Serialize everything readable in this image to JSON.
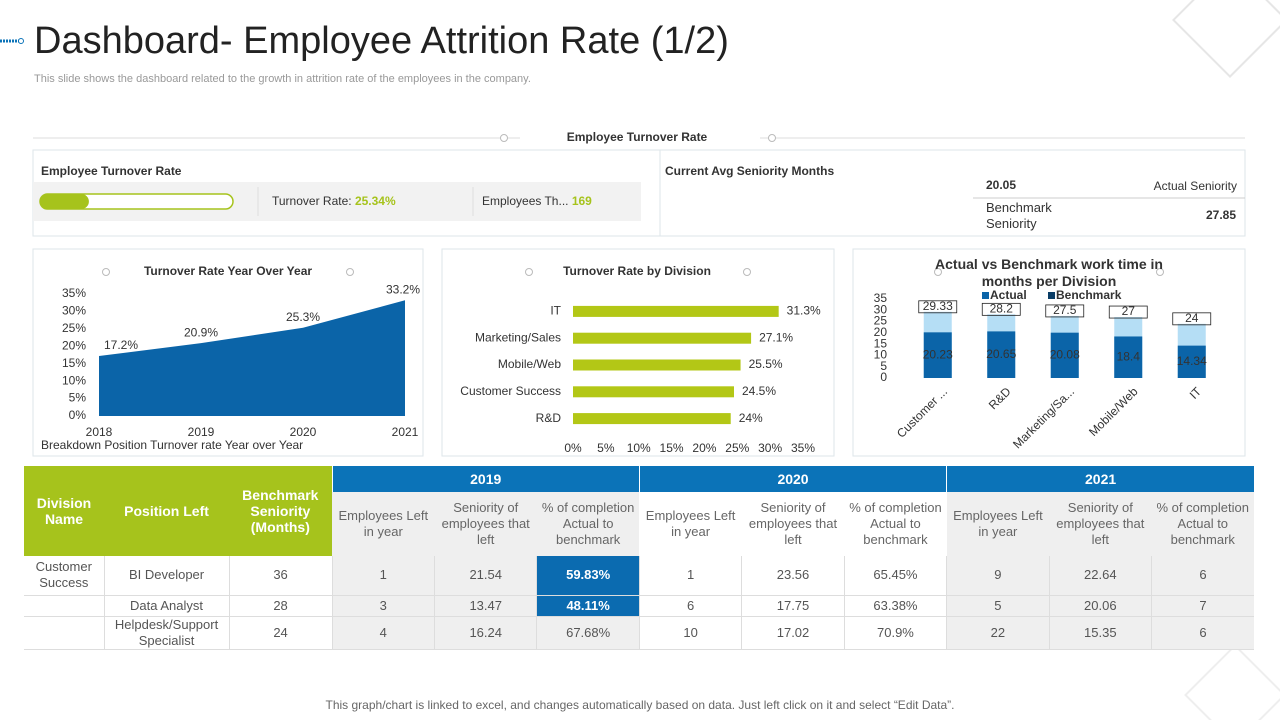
{
  "header": {
    "title": "Dashboard- Employee Attrition Rate (1/2)",
    "subtitle": "This slide shows the dashboard related to the growth in attrition rate of the employees in the company."
  },
  "section_title": "Employee Turnover Rate",
  "kpi": {
    "title": "Employee Turnover Rate",
    "turnover_label": "Turnover Rate:",
    "turnover_value": 25.34,
    "turnover_value_label": "25.34%",
    "employees_label": "Employees Th...",
    "employees_value": 169
  },
  "seniority": {
    "title": "Current Avg Seniority Months",
    "actual_value": 20.05,
    "actual_label": "Actual Seniority",
    "benchmark_label": "Benchmark Seniority",
    "benchmark_value": 27.85
  },
  "chart_data": [
    {
      "type": "area",
      "title": "Turnover Rate Year Over Year",
      "categories": [
        "2018",
        "2019",
        "2020",
        "2021"
      ],
      "values": [
        17.2,
        20.9,
        25.3,
        33.2
      ],
      "value_labels": [
        "17.2%",
        "20.9%",
        "25.3%",
        "33.2%"
      ],
      "color": "#0b64a8",
      "ylim": [
        0,
        35
      ],
      "yticks": [
        {
          "value": 0,
          "label": "0%"
        },
        {
          "value": 5,
          "label": "5%"
        },
        {
          "value": 10,
          "label": "10%"
        },
        {
          "value": 15,
          "label": "15%"
        },
        {
          "value": 20,
          "label": "20%"
        },
        {
          "value": 25,
          "label": "25%"
        },
        {
          "value": 30,
          "label": "30%"
        },
        {
          "value": 35,
          "label": "35%"
        }
      ],
      "note": "Breakdown Position Turnover rate Year over Year"
    },
    {
      "type": "hbar",
      "title": "Turnover Rate by Division",
      "categories": [
        "IT",
        "Marketing/Sales",
        "Mobile/Web",
        "Customer Success",
        "R&D"
      ],
      "values": [
        31.3,
        27.1,
        25.5,
        24.5,
        24
      ],
      "value_labels": [
        "31.3%",
        "27.1%",
        "25.5%",
        "24.5%",
        "24%"
      ],
      "color": "#b3c716",
      "xlim": [
        0,
        35
      ],
      "xticks": [
        {
          "value": 0,
          "label": "0%"
        },
        {
          "value": 5,
          "label": "5%"
        },
        {
          "value": 10,
          "label": "10%"
        },
        {
          "value": 15,
          "label": "15%"
        },
        {
          "value": 20,
          "label": "20%"
        },
        {
          "value": 25,
          "label": "25%"
        },
        {
          "value": 30,
          "label": "30%"
        },
        {
          "value": 35,
          "label": "35%"
        }
      ]
    },
    {
      "type": "overlap_bar",
      "title": "Actual vs Benchmark work time in months per Division",
      "categories": [
        "Customer ...",
        "R&D",
        "Marketing/Sa...",
        "Mobile/Web",
        "IT"
      ],
      "series": [
        {
          "name": "Benchmark",
          "color": "#b5def5",
          "values": [
            29.33,
            28.2,
            27.5,
            27,
            24
          ]
        },
        {
          "name": "Actual",
          "color": "#0b64a8",
          "values": [
            20.23,
            20.65,
            20.08,
            18.4,
            14.34
          ]
        }
      ],
      "ylim": [
        0,
        35
      ],
      "yticks": [
        0,
        5,
        10,
        15,
        20,
        25,
        30,
        35
      ]
    }
  ],
  "table": {
    "columns": [
      "Division Name",
      "Position Left",
      "Benchmark Seniority (Months)"
    ],
    "years": [
      "2019",
      "2020",
      "2021"
    ],
    "subcolumns": [
      "Employees Left in year",
      "Seniority of employees that left",
      "% of completion Actual to benchmark"
    ],
    "rows": [
      [
        "Customer Success",
        "BI Developer",
        "36",
        "1",
        "21.54",
        "59.83%",
        "1",
        "23.56",
        "65.45%",
        "9",
        "22.64",
        "6"
      ],
      [
        "Data Analyst",
        "28",
        "3",
        "13.47",
        "48.11%",
        "6",
        "17.75",
        "63.38%",
        "5",
        "20.06",
        "7"
      ],
      [
        "Helpdesk/Support Specialist",
        "24",
        "4",
        "16.24",
        "67.68%",
        "10",
        "17.02",
        "70.9%",
        "22",
        "15.35",
        "6"
      ]
    ]
  },
  "footer": "This graph/chart is linked to excel, and changes automatically based on data. Just left click on it and select “Edit Data”."
}
